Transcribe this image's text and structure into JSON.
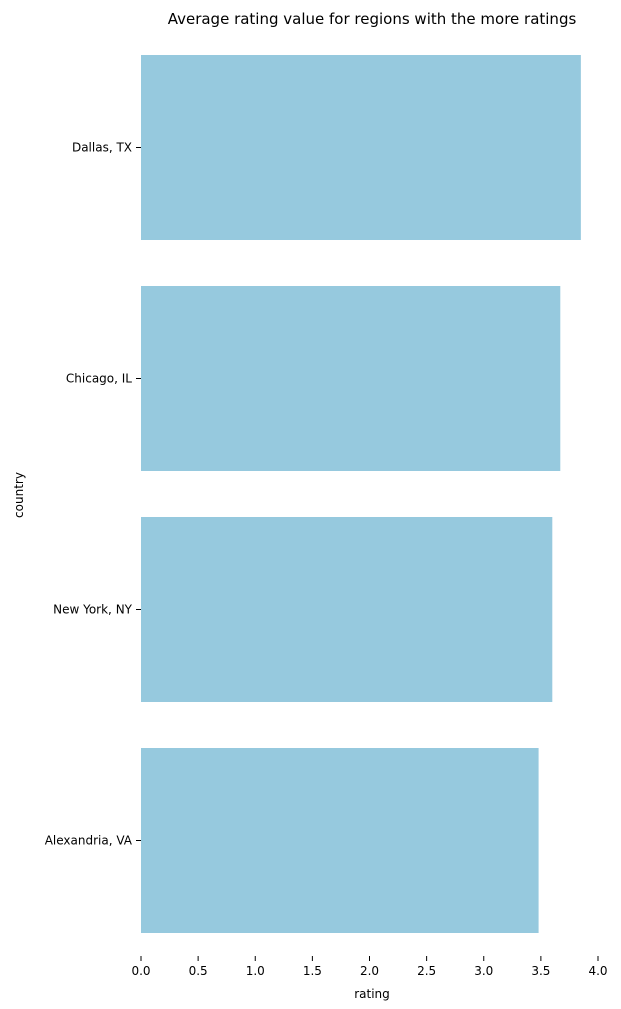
{
  "chart_data": {
    "type": "bar",
    "orientation": "horizontal",
    "title": "Average rating value for regions with the more ratings",
    "xlabel": "rating",
    "ylabel": "country",
    "categories": [
      "Dallas, TX",
      "Chicago, IL",
      "New York, NY",
      "Alexandria, VA"
    ],
    "values": [
      3.85,
      3.67,
      3.6,
      3.48
    ],
    "xlim": [
      0,
      4.0
    ],
    "xticks": [
      "0.0",
      "0.5",
      "1.0",
      "1.5",
      "2.0",
      "2.5",
      "3.0",
      "3.5",
      "4.0"
    ],
    "grid": false,
    "bar_color": "#96c9de"
  }
}
